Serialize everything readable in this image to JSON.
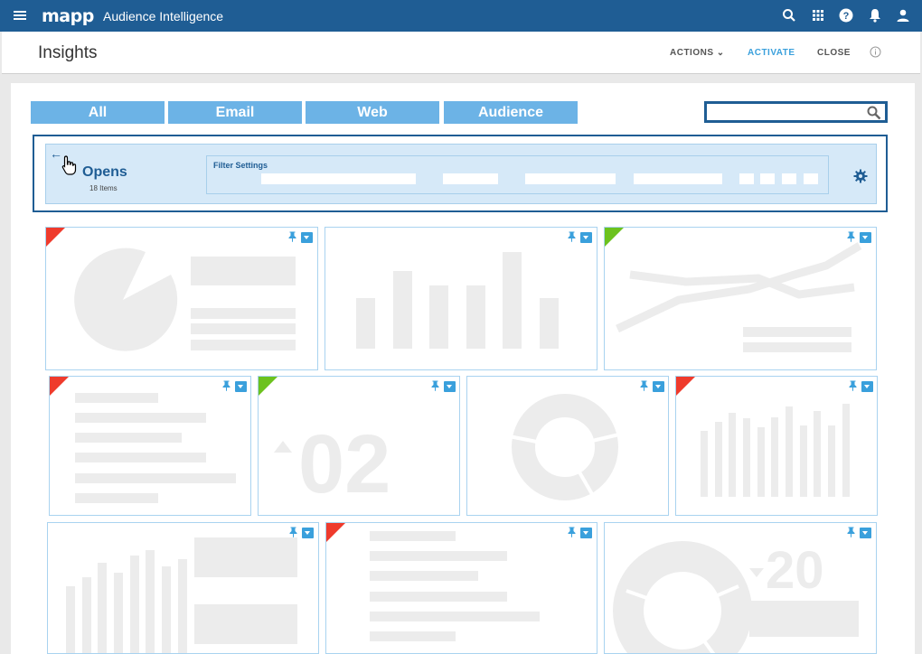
{
  "topbar": {
    "logo": "mapp",
    "app_title": "Audience Intelligence"
  },
  "icons": [
    "menu-icon",
    "search-icon",
    "apps-grid-icon",
    "help-icon",
    "bell-icon",
    "user-icon",
    "settings-icon",
    "pin-icon",
    "download-icon",
    "info-icon",
    "back-arrow-icon",
    "hand-cursor-icon"
  ],
  "header": {
    "title": "Insights",
    "actions_label": "ACTIONS",
    "activate_label": "ACTIVATE",
    "close_label": "CLOSE"
  },
  "tabs": [
    {
      "label": "All"
    },
    {
      "label": "Email"
    },
    {
      "label": "Web"
    },
    {
      "label": "Audience"
    }
  ],
  "search": {
    "placeholder": "",
    "value": ""
  },
  "filter": {
    "back": "←",
    "title": "Opens",
    "count": "18 Items",
    "settings_label": "Filter Settings"
  },
  "cards": [
    {
      "type": "pie",
      "corner": "red"
    },
    {
      "type": "bar",
      "corner": ""
    },
    {
      "type": "line",
      "corner": "green"
    },
    {
      "type": "list",
      "corner": "red"
    },
    {
      "type": "number",
      "corner": "green",
      "value": "02"
    },
    {
      "type": "donut",
      "corner": ""
    },
    {
      "type": "bars",
      "corner": "red"
    },
    {
      "type": "bars-blocks",
      "corner": ""
    },
    {
      "type": "list",
      "corner": "red"
    },
    {
      "type": "donut-number",
      "corner": "",
      "value": "20"
    }
  ],
  "colors": {
    "brand": "#1f5d94",
    "tab": "#6cb3e6",
    "accent": "#3aa0dc",
    "red": "#ef3b2c",
    "green": "#6cc21e"
  }
}
